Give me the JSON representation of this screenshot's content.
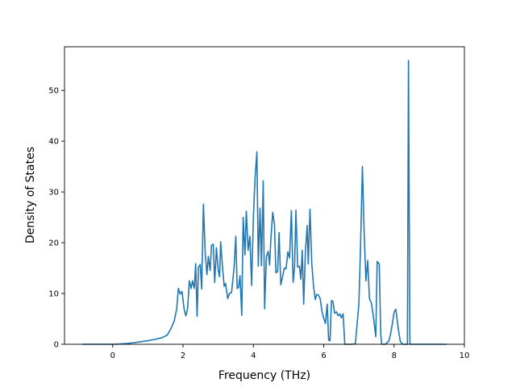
{
  "chart_data": {
    "type": "line",
    "title": "",
    "xlabel": "Frequency (THz)",
    "ylabel": "Density of States",
    "xlim": [
      -1.37,
      10.0
    ],
    "ylim": [
      0,
      58.6
    ],
    "x_ticks": [
      0,
      2,
      4,
      6,
      8,
      10
    ],
    "y_ticks": [
      0,
      10,
      20,
      30,
      40,
      50
    ],
    "grid": false,
    "legend": "none",
    "series_color": "#1f77b4",
    "series": [
      {
        "points": [
          [
            -0.87,
            0
          ],
          [
            -0.6,
            0
          ],
          [
            -0.3,
            0
          ],
          [
            0.0,
            0
          ],
          [
            0.2,
            0.05
          ],
          [
            0.4,
            0.15
          ],
          [
            0.6,
            0.3
          ],
          [
            0.8,
            0.5
          ],
          [
            1.0,
            0.7
          ],
          [
            1.2,
            0.95
          ],
          [
            1.4,
            1.3
          ],
          [
            1.55,
            1.8
          ],
          [
            1.65,
            3.0
          ],
          [
            1.75,
            4.6
          ],
          [
            1.82,
            7.0
          ],
          [
            1.87,
            11.0
          ],
          [
            1.92,
            9.9
          ],
          [
            1.97,
            10.4
          ],
          [
            2.03,
            7.0
          ],
          [
            2.08,
            5.6
          ],
          [
            2.13,
            7.0
          ],
          [
            2.18,
            12.5
          ],
          [
            2.23,
            11.0
          ],
          [
            2.27,
            12.5
          ],
          [
            2.32,
            11.0
          ],
          [
            2.36,
            15.9
          ],
          [
            2.4,
            5.5
          ],
          [
            2.44,
            15.2
          ],
          [
            2.49,
            15.7
          ],
          [
            2.53,
            10.9
          ],
          [
            2.58,
            27.6
          ],
          [
            2.63,
            18.0
          ],
          [
            2.68,
            13.7
          ],
          [
            2.72,
            17.3
          ],
          [
            2.77,
            14.5
          ],
          [
            2.81,
            19.5
          ],
          [
            2.86,
            19.7
          ],
          [
            2.9,
            12.2
          ],
          [
            2.95,
            19.0
          ],
          [
            3.0,
            14.5
          ],
          [
            3.04,
            13.3
          ],
          [
            3.07,
            20.2
          ],
          [
            3.12,
            15.4
          ],
          [
            3.17,
            11.4
          ],
          [
            3.21,
            12.0
          ],
          [
            3.27,
            9.0
          ],
          [
            3.32,
            10.0
          ],
          [
            3.38,
            10.2
          ],
          [
            3.45,
            15.0
          ],
          [
            3.5,
            21.3
          ],
          [
            3.54,
            11.0
          ],
          [
            3.58,
            11.2
          ],
          [
            3.62,
            13.5
          ],
          [
            3.67,
            5.7
          ],
          [
            3.71,
            25.0
          ],
          [
            3.76,
            17.6
          ],
          [
            3.8,
            26.2
          ],
          [
            3.85,
            18.5
          ],
          [
            3.9,
            21.3
          ],
          [
            3.95,
            11.6
          ],
          [
            4.0,
            25.0
          ],
          [
            4.05,
            33.0
          ],
          [
            4.1,
            37.9
          ],
          [
            4.14,
            15.4
          ],
          [
            4.19,
            26.8
          ],
          [
            4.23,
            15.5
          ],
          [
            4.28,
            32.2
          ],
          [
            4.32,
            7.0
          ],
          [
            4.37,
            17.3
          ],
          [
            4.42,
            18.3
          ],
          [
            4.46,
            15.6
          ],
          [
            4.5,
            21.0
          ],
          [
            4.55,
            26.0
          ],
          [
            4.6,
            23.5
          ],
          [
            4.64,
            14.1
          ],
          [
            4.69,
            14.3
          ],
          [
            4.73,
            22.0
          ],
          [
            4.78,
            11.7
          ],
          [
            4.83,
            13.3
          ],
          [
            4.88,
            15.0
          ],
          [
            4.93,
            14.9
          ],
          [
            4.98,
            18.2
          ],
          [
            5.03,
            17.0
          ],
          [
            5.08,
            26.3
          ],
          [
            5.13,
            12.2
          ],
          [
            5.17,
            15.0
          ],
          [
            5.21,
            26.4
          ],
          [
            5.26,
            15.2
          ],
          [
            5.31,
            15.4
          ],
          [
            5.35,
            12.8
          ],
          [
            5.39,
            18.5
          ],
          [
            5.43,
            7.9
          ],
          [
            5.48,
            18.3
          ],
          [
            5.53,
            23.4
          ],
          [
            5.56,
            15.8
          ],
          [
            5.61,
            26.6
          ],
          [
            5.66,
            16.0
          ],
          [
            5.71,
            11.5
          ],
          [
            5.76,
            8.8
          ],
          [
            5.8,
            9.8
          ],
          [
            5.85,
            9.7
          ],
          [
            5.9,
            9.0
          ],
          [
            5.95,
            6.5
          ],
          [
            6.0,
            5.1
          ],
          [
            6.05,
            4.1
          ],
          [
            6.1,
            7.9
          ],
          [
            6.14,
            0.8
          ],
          [
            6.18,
            0.7
          ],
          [
            6.22,
            8.6
          ],
          [
            6.26,
            8.5
          ],
          [
            6.31,
            6.1
          ],
          [
            6.36,
            6.4
          ],
          [
            6.41,
            5.6
          ],
          [
            6.46,
            6.0
          ],
          [
            6.5,
            5.2
          ],
          [
            6.55,
            6.0
          ],
          [
            6.6,
            0
          ],
          [
            6.7,
            0
          ],
          [
            6.8,
            0
          ],
          [
            6.9,
            0.1
          ],
          [
            7.0,
            8.0
          ],
          [
            7.05,
            20.0
          ],
          [
            7.1,
            35.0
          ],
          [
            7.15,
            22.0
          ],
          [
            7.2,
            12.5
          ],
          [
            7.25,
            16.5
          ],
          [
            7.3,
            9.0
          ],
          [
            7.36,
            8.0
          ],
          [
            7.42,
            5.0
          ],
          [
            7.48,
            1.5
          ],
          [
            7.52,
            16.3
          ],
          [
            7.58,
            15.8
          ],
          [
            7.62,
            2.0
          ],
          [
            7.65,
            0
          ],
          [
            7.75,
            0
          ],
          [
            7.85,
            0.6
          ],
          [
            7.9,
            2.0
          ],
          [
            7.95,
            4.0
          ],
          [
            8.0,
            6.3
          ],
          [
            8.05,
            6.9
          ],
          [
            8.12,
            3.0
          ],
          [
            8.18,
            0.5
          ],
          [
            8.25,
            0
          ],
          [
            8.32,
            0
          ],
          [
            8.38,
            0
          ],
          [
            8.41,
            55.9
          ],
          [
            8.45,
            0
          ],
          [
            8.6,
            0
          ],
          [
            9.0,
            0
          ],
          [
            9.5,
            0
          ]
        ]
      }
    ]
  }
}
